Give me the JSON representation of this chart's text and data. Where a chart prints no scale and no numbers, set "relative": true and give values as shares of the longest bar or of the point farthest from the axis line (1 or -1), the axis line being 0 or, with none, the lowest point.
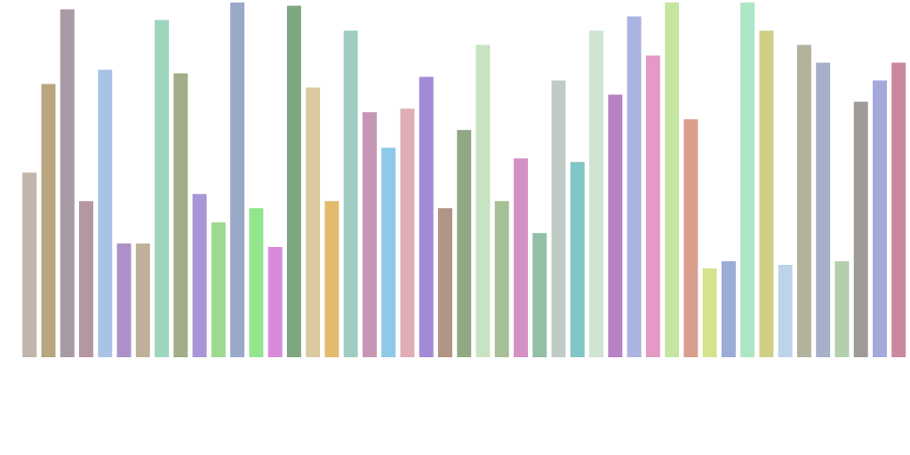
{
  "chart_data": {
    "type": "bar",
    "relative": true,
    "legend": false,
    "grid": false,
    "categories": [
      null,
      null,
      null,
      null,
      null,
      null,
      null,
      null,
      null,
      null,
      null,
      null,
      null,
      null,
      null,
      null,
      null,
      null,
      null,
      null,
      null,
      null,
      null,
      null,
      null,
      null,
      null,
      null,
      null,
      null,
      null,
      null,
      null,
      null,
      null,
      null,
      null,
      null,
      null,
      null,
      null,
      null,
      null,
      null,
      null,
      null,
      null
    ],
    "values": [
      0.52,
      0.77,
      0.98,
      0.44,
      0.81,
      0.32,
      0.32,
      0.95,
      0.8,
      0.46,
      0.38,
      1.0,
      0.42,
      0.31,
      0.99,
      0.76,
      0.44,
      0.92,
      0.69,
      0.59,
      0.7,
      0.79,
      0.42,
      0.64,
      0.88,
      0.44,
      0.56,
      0.35,
      0.78,
      0.55,
      0.92,
      0.74,
      0.96,
      0.85,
      1.0,
      0.67,
      0.25,
      0.27,
      1.0,
      0.92,
      0.26,
      0.88,
      0.83,
      0.27,
      0.72,
      0.78,
      0.83
    ],
    "colors": [
      "#c2b5ab",
      "#b9a57e",
      "#a89aa4",
      "#b597a4",
      "#a9c3e6",
      "#ad90c8",
      "#c0b09a",
      "#9dd6bd",
      "#a1ae88",
      "#a996d8",
      "#9ed98f",
      "#9aa9c8",
      "#91e68e",
      "#d88ad9",
      "#7da67f",
      "#dcc9a1",
      "#e2bb6e",
      "#9fcdc2",
      "#c597b5",
      "#8ecae8",
      "#e1aeb6",
      "#a38ad6",
      "#b09484",
      "#90a884",
      "#c8e3c2",
      "#a6c096",
      "#d491c5",
      "#93bfa6",
      "#bfcbc4",
      "#7fc6c4",
      "#cfe4d3",
      "#b882c4",
      "#aab4e0",
      "#e49ac4",
      "#c5e6a0",
      "#d99f8d",
      "#d5e28e",
      "#9aacd6",
      "#ade6c4",
      "#cfcf85",
      "#bcd4e8",
      "#b3b39d",
      "#a7b0c8",
      "#b3cfab",
      "#9e9a98",
      "#a4abdc",
      "#cc87a0"
    ]
  }
}
